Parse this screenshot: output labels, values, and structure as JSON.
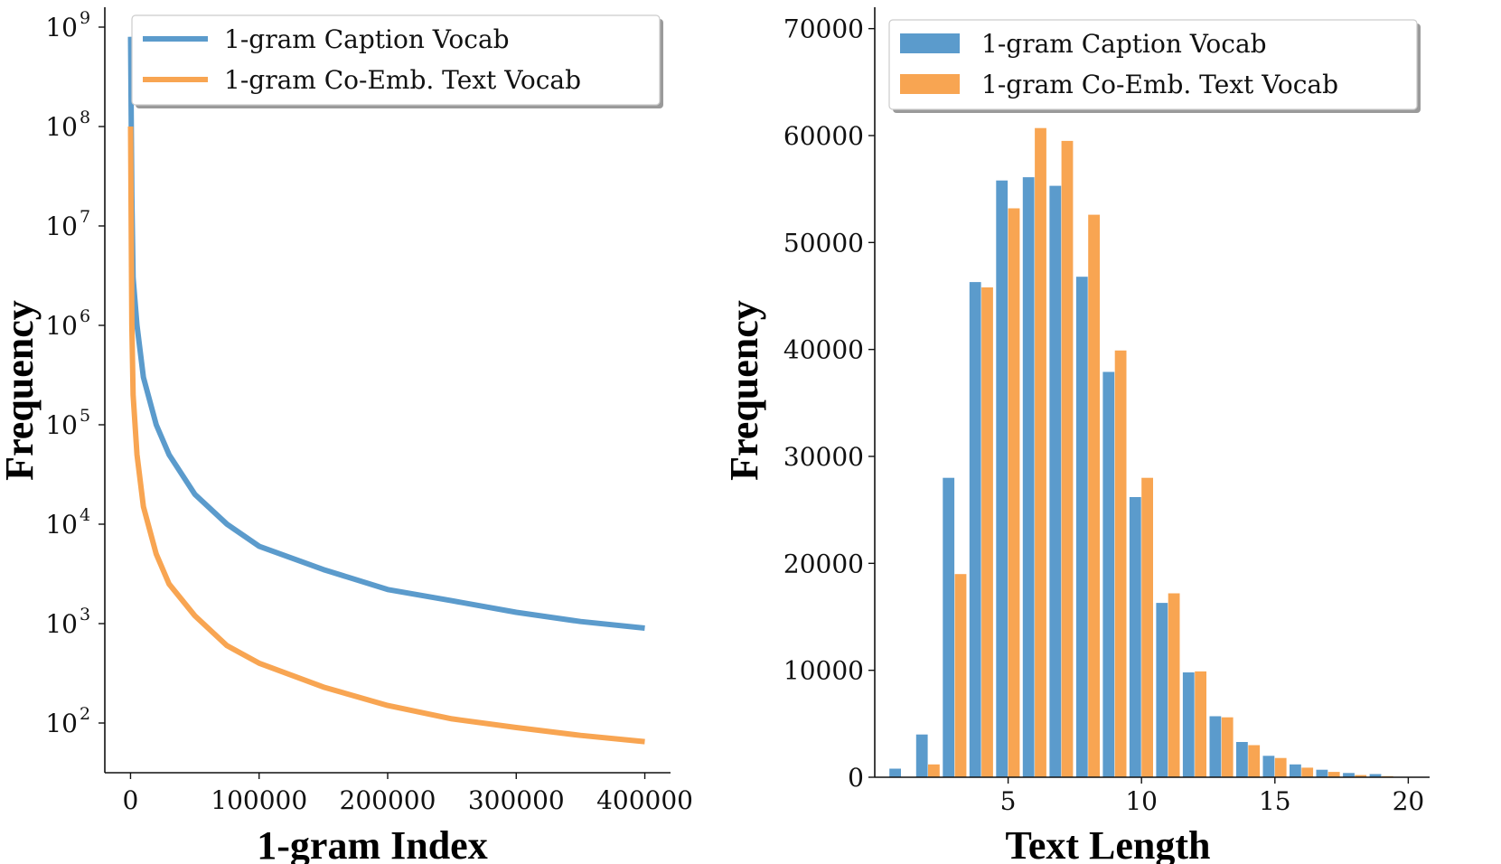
{
  "colors": {
    "caption": "#5b9bcc",
    "coemb": "#f8a552",
    "axis": "#111111"
  },
  "chart_data": [
    {
      "type": "line",
      "xlabel": "1-gram Index",
      "ylabel": "Frequency",
      "xlim": [
        -20000,
        420000
      ],
      "xticks": [
        "0",
        "100000",
        "200000",
        "300000",
        "400000"
      ],
      "xtick_values": [
        0,
        100000,
        200000,
        300000,
        400000
      ],
      "yscale": "log",
      "ylim_log10": [
        1.5,
        9.2
      ],
      "ytick_base": "10",
      "ytick_exponents": [
        "2",
        "3",
        "4",
        "5",
        "6",
        "7",
        "8",
        "9"
      ],
      "legend_position": "top-right",
      "series": [
        {
          "name": "1-gram Caption Vocab",
          "color_key": "caption",
          "x": [
            0,
            1000,
            2000,
            5000,
            10000,
            20000,
            30000,
            50000,
            75000,
            100000,
            150000,
            200000,
            250000,
            300000,
            350000,
            400000
          ],
          "y": [
            800000000,
            20000000,
            3000000,
            1000000,
            300000,
            100000,
            50000,
            20000,
            10000,
            6000,
            3500,
            2200,
            1700,
            1300,
            1050,
            900
          ]
        },
        {
          "name": "1-gram Co-Emb. Text Vocab",
          "color_key": "coemb",
          "x": [
            0,
            1000,
            2000,
            5000,
            10000,
            20000,
            30000,
            50000,
            75000,
            100000,
            150000,
            200000,
            250000,
            300000,
            350000,
            400000
          ],
          "y": [
            100000000,
            1000000,
            200000,
            50000,
            15000,
            5000,
            2500,
            1200,
            600,
            400,
            230,
            150,
            110,
            90,
            75,
            65
          ]
        }
      ]
    },
    {
      "type": "bar",
      "xlabel": "Text Length",
      "ylabel": "Frequency",
      "xlim": [
        0,
        20.8
      ],
      "ylim": [
        0,
        72000
      ],
      "xticks": [
        "5",
        "10",
        "15",
        "20"
      ],
      "xtick_values": [
        5,
        10,
        15,
        20
      ],
      "yticks": [
        "0",
        "10000",
        "20000",
        "30000",
        "40000",
        "50000",
        "60000",
        "70000"
      ],
      "ytick_values": [
        0,
        10000,
        20000,
        30000,
        40000,
        50000,
        60000,
        70000
      ],
      "legend_position": "top-left",
      "categories": [
        1,
        2,
        3,
        4,
        5,
        6,
        7,
        8,
        9,
        10,
        11,
        12,
        13,
        14,
        15,
        16,
        17,
        18,
        19
      ],
      "series": [
        {
          "name": "1-gram Caption Vocab",
          "color_key": "caption",
          "values": [
            800,
            4000,
            28000,
            46300,
            55800,
            56100,
            55300,
            46800,
            37900,
            26200,
            16300,
            9800,
            5700,
            3300,
            2000,
            1200,
            700,
            400,
            300
          ]
        },
        {
          "name": "1-gram Co-Emb. Text Vocab",
          "color_key": "coemb",
          "values": [
            0,
            1200,
            19000,
            45800,
            53200,
            60700,
            59500,
            52600,
            39900,
            28000,
            17200,
            9900,
            5600,
            3000,
            1800,
            900,
            500,
            200,
            100
          ]
        }
      ]
    }
  ]
}
